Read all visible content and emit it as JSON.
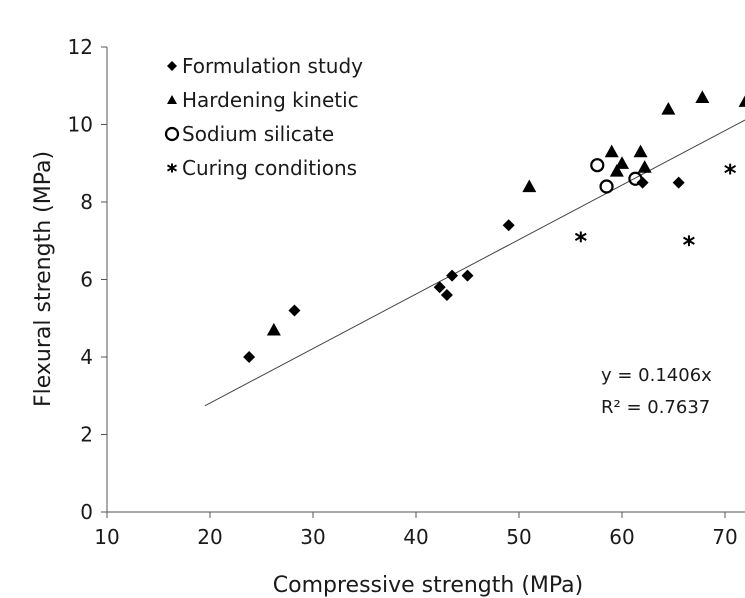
{
  "chart_data": {
    "type": "scatter",
    "xlabel": "Compressive strength (MPa)",
    "ylabel": "Flexural strength (MPa)",
    "xlim": [
      10,
      75
    ],
    "ylim": [
      0,
      12
    ],
    "xticks": [
      10,
      20,
      30,
      40,
      50,
      60,
      70
    ],
    "yticks": [
      0,
      2,
      4,
      6,
      8,
      10,
      12
    ],
    "grid": false,
    "legend_position": "top-left",
    "series": [
      {
        "name": "Formulation study",
        "marker": "diamond",
        "points": [
          {
            "x": 23.8,
            "y": 4.0
          },
          {
            "x": 28.2,
            "y": 5.2
          },
          {
            "x": 42.3,
            "y": 5.8
          },
          {
            "x": 43.0,
            "y": 5.6
          },
          {
            "x": 43.5,
            "y": 6.1
          },
          {
            "x": 45.0,
            "y": 6.1
          },
          {
            "x": 49.0,
            "y": 7.4
          },
          {
            "x": 62.0,
            "y": 8.5
          },
          {
            "x": 65.5,
            "y": 8.5
          }
        ]
      },
      {
        "name": "Hardening kinetic",
        "marker": "triangle",
        "points": [
          {
            "x": 26.2,
            "y": 4.7
          },
          {
            "x": 51.0,
            "y": 8.4
          },
          {
            "x": 59.0,
            "y": 9.3
          },
          {
            "x": 59.5,
            "y": 8.8
          },
          {
            "x": 60.0,
            "y": 9.0
          },
          {
            "x": 61.8,
            "y": 9.3
          },
          {
            "x": 62.2,
            "y": 8.9
          },
          {
            "x": 64.5,
            "y": 10.4
          },
          {
            "x": 67.8,
            "y": 10.7
          },
          {
            "x": 72.0,
            "y": 10.6
          }
        ]
      },
      {
        "name": "Sodium silicate",
        "marker": "circle",
        "points": [
          {
            "x": 57.6,
            "y": 8.95
          },
          {
            "x": 58.5,
            "y": 8.4
          },
          {
            "x": 61.3,
            "y": 8.6
          }
        ]
      },
      {
        "name": "Curing conditions",
        "marker": "asterisk",
        "points": [
          {
            "x": 56.0,
            "y": 7.1
          },
          {
            "x": 66.5,
            "y": 7.0
          },
          {
            "x": 70.5,
            "y": 8.85
          }
        ]
      }
    ],
    "trendline": {
      "x_range": [
        19.5,
        72.5
      ],
      "slope": 0.1406,
      "intercept": 0.0
    },
    "annotations": {
      "equation": "y = 0.1406x",
      "r_squared": "R² = 0.7637"
    }
  }
}
